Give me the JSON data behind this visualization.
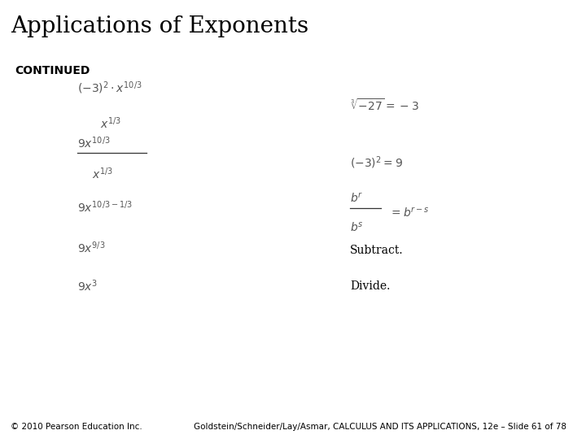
{
  "title": "Applications of Exponents",
  "title_bg": "#f5f2d0",
  "title_color": "#000000",
  "title_fontsize": 20,
  "bar_color": "#7b0e0e",
  "continued_text": "CONTINUED",
  "continued_fontsize": 10,
  "body_bg": "#ffffff",
  "footer_bg": "#f5f2d0",
  "footer_bar_color": "#7b0e0e",
  "footer_left": "© 2010 Pearson Education Inc.",
  "footer_right": "Goldstein/Schneider/Lay/Asmar, CALCULUS AND ITS APPLICATIONS, 12e – Slide 61 of 78",
  "footer_fontsize": 7.5,
  "expr_color": "#555555",
  "expr_fontsize": 10
}
